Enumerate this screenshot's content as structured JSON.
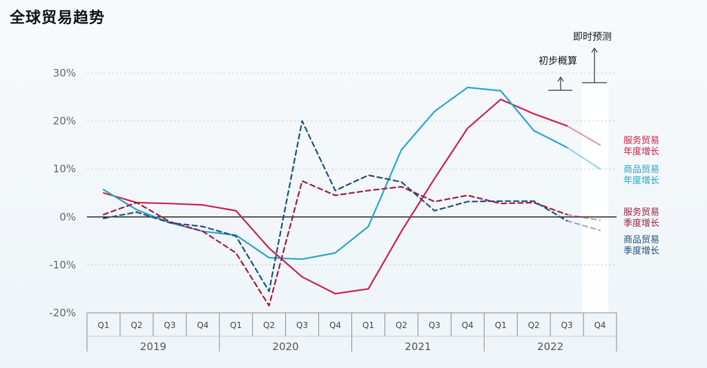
{
  "page_title": "全球贸易趋势",
  "chart_data": {
    "type": "line",
    "title": "全球贸易趋势",
    "ylim": [
      -20,
      30
    ],
    "yticks": [
      30,
      20,
      10,
      0,
      -10,
      -20
    ],
    "ytick_labels": [
      "30%",
      "20%",
      "10%",
      "0%",
      "-10%",
      "-20%"
    ],
    "categories": [
      "Q1",
      "Q2",
      "Q3",
      "Q4",
      "Q1",
      "Q2",
      "Q3",
      "Q4",
      "Q1",
      "Q2",
      "Q3",
      "Q4",
      "Q1",
      "Q2",
      "Q3",
      "Q4"
    ],
    "years": [
      "2019",
      "2020",
      "2021",
      "2022"
    ],
    "series": [
      {
        "name": "服务贸易年度增长",
        "legend": [
          "服务贸易",
          "年度增长"
        ],
        "color": "#cc1f4a",
        "dash": false,
        "values": [
          5,
          3,
          2.8,
          2.5,
          1.3,
          -6.5,
          -12.5,
          -16,
          -15,
          -3,
          8,
          18.5,
          24.5,
          21.5,
          19,
          15
        ]
      },
      {
        "name": "商品贸易年度增长",
        "legend": [
          "商品贸易",
          "年度增长"
        ],
        "color": "#25a6c9",
        "dash": false,
        "values": [
          5.7,
          1.5,
          -1.2,
          -3,
          -3.8,
          -8.5,
          -8.8,
          -7.5,
          -2,
          14,
          22,
          27,
          26.3,
          18,
          14.5,
          10
        ]
      },
      {
        "name": "服务贸易季度增长",
        "legend": [
          "服务贸易",
          "季度增长"
        ],
        "color": "#9e1c3c",
        "dash": true,
        "values": [
          0.5,
          3,
          -1,
          -3,
          -7.5,
          -18.5,
          7.5,
          4.5,
          5.5,
          6.3,
          3.2,
          4.5,
          2.8,
          3,
          0.5,
          -0.7
        ]
      },
      {
        "name": "商品贸易季度增长",
        "legend": [
          "商品贸易",
          "季度增长"
        ],
        "color": "#1d4f7c",
        "dash": true,
        "values": [
          -0.3,
          1,
          -1.2,
          -2,
          -4,
          -15.5,
          20,
          5.5,
          8.7,
          7.3,
          1.3,
          3.2,
          3.3,
          3.3,
          -0.8,
          -2.8
        ]
      }
    ],
    "annotations": {
      "preliminary": "初步概算",
      "nowcast": "即时预测"
    }
  }
}
